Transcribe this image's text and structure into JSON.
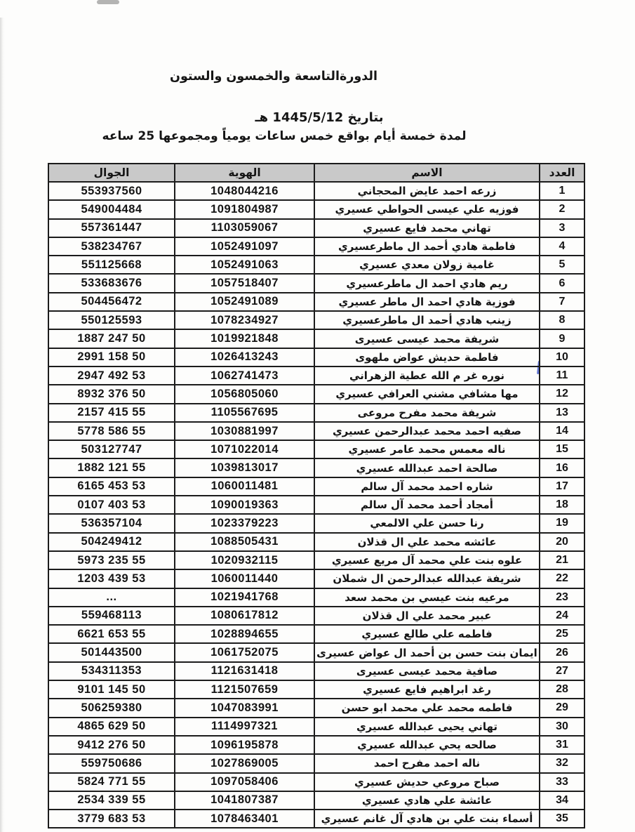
{
  "page": {
    "title": "الدورةالتاسعة والخمسون والستون",
    "date_line": "بتاريخ 1445/5/12 هـ",
    "duration_line": "لمدة خمسة أيام بواقع خمس ساعات يومياً ومجموعها 25 ساعه"
  },
  "colors": {
    "header_bg": "#c9c9c9",
    "border": "#1c1c1c",
    "ink": "#151515",
    "paper": "#fdfdfc",
    "pen_mark": "#3a52c8"
  },
  "table": {
    "headers": {
      "num": "العدد",
      "name": "الاسم",
      "id": "الهوية",
      "phone": "الجوال"
    },
    "rows": [
      {
        "num": "1",
        "name": "زرعه احمد عايض المحجاني",
        "id": "1048044216",
        "phone": "553937560"
      },
      {
        "num": "2",
        "name": "فوزيه علي عيسى الحواطي عسيري",
        "id": "1091804987",
        "phone": "549004484"
      },
      {
        "num": "3",
        "name": "تهاني محمد فايع عسيري",
        "id": "1103059067",
        "phone": "557361447"
      },
      {
        "num": "4",
        "name": "فاطمة هادي أحمد ال ماطرعسيري",
        "id": "1052491097",
        "phone": "538234767"
      },
      {
        "num": "5",
        "name": "غامية زولان معدي عسيري",
        "id": "1052491063",
        "phone": "551125668"
      },
      {
        "num": "6",
        "name": "ريم هادي احمد ال ماطرعسيري",
        "id": "1057518407",
        "phone": "533683676"
      },
      {
        "num": "7",
        "name": "فوزية هادي احمد ال ماطر عسيري",
        "id": "1052491089",
        "phone": "504456472"
      },
      {
        "num": "8",
        "name": "زينب هادي أحمد ال ماطرعسيري",
        "id": "1078234927",
        "phone": "550125593"
      },
      {
        "num": "9",
        "name": "شريفة محمد عيسى عسيرى",
        "id": "1019921848",
        "phone": "50 247 1887"
      },
      {
        "num": "10",
        "name": "فاطمة حديش عواض ملهوى",
        "id": "1026413243",
        "phone": "50 158 2991"
      },
      {
        "num": "11",
        "name": "نوره غر م الله عطية الزهراني",
        "id": "1062741473",
        "phone": "53 492 2947"
      },
      {
        "num": "12",
        "name": "مها مشافي مشني العرافي عسيري",
        "id": "1056805060",
        "phone": "50 376 8932"
      },
      {
        "num": "13",
        "name": "شريفة محمد مفرح مروعى",
        "id": "1105567695",
        "phone": "55 415 2157"
      },
      {
        "num": "14",
        "name": "صفيه احمد محمد عبدالرحمن عسيري",
        "id": "1030881997",
        "phone": "55 586 5778"
      },
      {
        "num": "15",
        "name": "ناله معمس محمد عامر عسيري",
        "id": "1071022014",
        "phone": "503127747"
      },
      {
        "num": "16",
        "name": "صالحة احمد عبدالله عسيري",
        "id": "1039813017",
        "phone": "55 121 1882"
      },
      {
        "num": "17",
        "name": "شاره احمد محمد آل سالم",
        "id": "1060011481",
        "phone": "53 453 6165"
      },
      {
        "num": "18",
        "name": "أمجاد أحمد محمد آل سالم",
        "id": "1090019363",
        "phone": "53 403 0107"
      },
      {
        "num": "19",
        "name": "رنا حسن علي الالمعي",
        "id": "1023379223",
        "phone": "536357104"
      },
      {
        "num": "20",
        "name": "عائشه محمد علي ال قذلان",
        "id": "1088505431",
        "phone": "504249412"
      },
      {
        "num": "21",
        "name": "علوه بنت علي محمد آل مريع عسيري",
        "id": "1020932115",
        "phone": "55 235 5973"
      },
      {
        "num": "22",
        "name": "شريفة عبدالله عبدالرحمن ال شملان",
        "id": "1060011440",
        "phone": "53 439 1203"
      },
      {
        "num": "23",
        "name": "مرعيه بنت عيسي بن محمد سعد",
        "id": "1021941768",
        "phone": "..."
      },
      {
        "num": "24",
        "name": "عبير محمد علي ال قذلان",
        "id": "1080617812",
        "phone": "559468113"
      },
      {
        "num": "25",
        "name": "فاطمه علي طالع عسيري",
        "id": "1028894655",
        "phone": "55 653 6621"
      },
      {
        "num": "26",
        "name": "ايمان بنت حسن بن أحمد ال عواض عسيرى",
        "id": "1061752075",
        "phone": "501443500"
      },
      {
        "num": "27",
        "name": "صافية محمد عيسى عسيرى",
        "id": "1121631418",
        "phone": "534311353"
      },
      {
        "num": "28",
        "name": "رغد ابراهيم فايع عسيري",
        "id": "1121507659",
        "phone": "50 145 9101"
      },
      {
        "num": "29",
        "name": "فاطمه محمد علي محمد ابو حسن",
        "id": "1047083991",
        "phone": "506259380"
      },
      {
        "num": "30",
        "name": "تهاني يحيى عبدالله عسيري",
        "id": "1114997321",
        "phone": "50 629 4865"
      },
      {
        "num": "31",
        "name": "صالحه يحي عبدالله عسيري",
        "id": "1096195878",
        "phone": "50 276 9412"
      },
      {
        "num": "32",
        "name": "ناله احمد مفرح احمد",
        "id": "1027869005",
        "phone": "559750686"
      },
      {
        "num": "33",
        "name": "صباح مروعي حديش عسيري",
        "id": "1097058406",
        "phone": "55 771 5824"
      },
      {
        "num": "34",
        "name": "عائشة علي هادي عسيري",
        "id": "1041807387",
        "phone": "55 339 2534"
      },
      {
        "num": "35",
        "name": "أسماء بنت علي بن هادي آل غانم عسيري",
        "id": "1078463401",
        "phone": "53 683 3779"
      }
    ]
  }
}
